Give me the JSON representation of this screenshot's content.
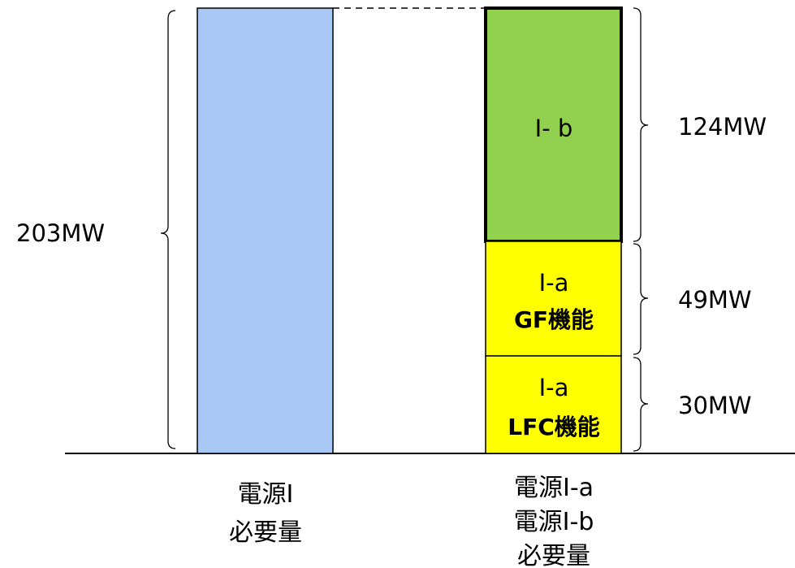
{
  "total_label": "203MW",
  "left_bar": {
    "color": "#a9c8f5",
    "caption": [
      "電源Ⅰ",
      "必要量"
    ]
  },
  "right_bar": {
    "caption": [
      "電源Ⅰ-a",
      "電源Ⅰ-b",
      "必要量"
    ],
    "segments": [
      {
        "id": "ib",
        "title": "Ⅰ- b",
        "subtitle": "",
        "value_label": "124MW",
        "color": "#92d050"
      },
      {
        "id": "gf",
        "title": "Ⅰ-a",
        "subtitle": "GF機能",
        "value_label": "49MW",
        "color": "#ffff00"
      },
      {
        "id": "lfc",
        "title": "Ⅰ-a",
        "subtitle": "LFC機能",
        "value_label": "30MW",
        "color": "#ffff00"
      }
    ]
  }
}
